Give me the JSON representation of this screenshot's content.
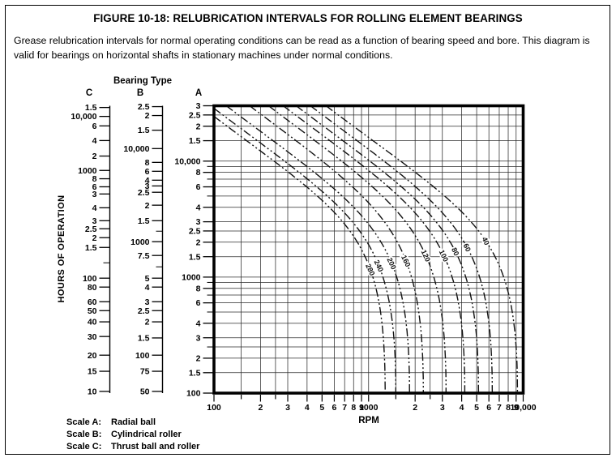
{
  "figure": {
    "title": "FIGURE 10-18: RELUBRICATION INTERVALS FOR ROLLING ELEMENT BEARINGS",
    "description": "Grease relubrication intervals for normal operating conditions can be read as a function of bearing speed and bore. This diagram is valid for bearings on horizontal shafts in stationary machines under normal conditions."
  },
  "bearing_type": {
    "header": "Bearing Type",
    "scale_c_letter": "C",
    "scale_b_letter": "B",
    "scale_a_letter": "A"
  },
  "nomogram": {
    "scale_c_ticks": [
      {
        "label": "1.5",
        "pos": 0.006
      },
      {
        "label": "10,000",
        "pos": 0.037
      },
      {
        "label": "6",
        "pos": 0.07
      },
      {
        "label": "4",
        "pos": 0.121
      },
      {
        "label": "2",
        "pos": 0.175
      },
      {
        "label": "1000",
        "pos": 0.225
      },
      {
        "label": "8",
        "pos": 0.254
      },
      {
        "label": "6",
        "pos": 0.282
      },
      {
        "label": "3",
        "pos": 0.307
      },
      {
        "label": "4",
        "pos": 0.355
      },
      {
        "label": "3",
        "pos": 0.4
      },
      {
        "label": "2.5",
        "pos": 0.428
      },
      {
        "label": "2",
        "pos": 0.459
      },
      {
        "label": "1.5",
        "pos": 0.493
      },
      {
        "label": "100",
        "pos": 0.6
      },
      {
        "label": "80",
        "pos": 0.631
      },
      {
        "label": "60",
        "pos": 0.682
      },
      {
        "label": "50",
        "pos": 0.713
      },
      {
        "label": "40",
        "pos": 0.752
      },
      {
        "label": "30",
        "pos": 0.803
      },
      {
        "label": "20",
        "pos": 0.868
      },
      {
        "label": "15",
        "pos": 0.924
      },
      {
        "label": "10",
        "pos": 0.994
      }
    ],
    "scale_b_ticks": [
      {
        "label": "2.5",
        "pos": 0.003
      },
      {
        "label": "2",
        "pos": 0.034
      },
      {
        "label": "1.5",
        "pos": 0.085
      },
      {
        "label": "10,000",
        "pos": 0.149
      },
      {
        "label": "8",
        "pos": 0.197
      },
      {
        "label": "6",
        "pos": 0.228
      },
      {
        "label": "4",
        "pos": 0.259
      },
      {
        "label": "3",
        "pos": 0.279
      },
      {
        "label": "2.5",
        "pos": 0.301
      },
      {
        "label": "2",
        "pos": 0.346
      },
      {
        "label": "1.5",
        "pos": 0.4
      },
      {
        "label": "1000",
        "pos": 0.473
      },
      {
        "label": "7.5",
        "pos": 0.521
      },
      {
        "label": "5",
        "pos": 0.6
      },
      {
        "label": "4",
        "pos": 0.631
      },
      {
        "label": "3",
        "pos": 0.682
      },
      {
        "label": "2.5",
        "pos": 0.713
      },
      {
        "label": "2",
        "pos": 0.752
      },
      {
        "label": "1.5",
        "pos": 0.808
      },
      {
        "label": "100",
        "pos": 0.868
      },
      {
        "label": "75",
        "pos": 0.924
      },
      {
        "label": "50",
        "pos": 0.994
      }
    ]
  },
  "chart_data": {
    "type": "line",
    "x_axis": {
      "label": "RPM",
      "scale": "log",
      "min": 100,
      "max": 10000,
      "ticks": [
        {
          "label": "100",
          "value": 100
        },
        {
          "label": "2",
          "value": 200
        },
        {
          "label": "3",
          "value": 300
        },
        {
          "label": "4",
          "value": 400
        },
        {
          "label": "5",
          "value": 500
        },
        {
          "label": "6",
          "value": 600
        },
        {
          "label": "7",
          "value": 700
        },
        {
          "label": "8",
          "value": 800
        },
        {
          "label": "9",
          "value": 900
        },
        {
          "label": "1000",
          "value": 1000
        },
        {
          "label": "2",
          "value": 2000
        },
        {
          "label": "3",
          "value": 3000
        },
        {
          "label": "4",
          "value": 4000
        },
        {
          "label": "5",
          "value": 5000
        },
        {
          "label": "6",
          "value": 6000
        },
        {
          "label": "7",
          "value": 7000
        },
        {
          "label": "8",
          "value": 8000
        },
        {
          "label": "9",
          "value": 9000
        },
        {
          "label": "10,000",
          "value": 10000
        }
      ],
      "grid_divisions": [
        1,
        1.5,
        2,
        2.5,
        3,
        4,
        5,
        6,
        7,
        8,
        9
      ]
    },
    "y_axis": {
      "label": "HOURS OF OPERATION",
      "scale": "log",
      "min": 100,
      "max": 30000,
      "ticks": [
        {
          "label": "3",
          "value": 30000
        },
        {
          "label": "2.5",
          "value": 25000
        },
        {
          "label": "2",
          "value": 20000
        },
        {
          "label": "1.5",
          "value": 15000
        },
        {
          "label": "10,000",
          "value": 10000
        },
        {
          "label": "8",
          "value": 8000
        },
        {
          "label": "6",
          "value": 6000
        },
        {
          "label": "4",
          "value": 4000
        },
        {
          "label": "3",
          "value": 3000
        },
        {
          "label": "2.5",
          "value": 2500
        },
        {
          "label": "2",
          "value": 2000
        },
        {
          "label": "1.5",
          "value": 1500
        },
        {
          "label": "1000",
          "value": 1000
        },
        {
          "label": "8",
          "value": 800
        },
        {
          "label": "6",
          "value": 600
        },
        {
          "label": "4",
          "value": 400
        },
        {
          "label": "3",
          "value": 300
        },
        {
          "label": "2",
          "value": 200
        },
        {
          "label": "1.5",
          "value": 150
        },
        {
          "label": "100",
          "value": 100
        }
      ],
      "minor_tick_values": [
        9000,
        7000,
        5000,
        900,
        700,
        500,
        250
      ],
      "grid_divisions": [
        1,
        1.5,
        2,
        2.5,
        3,
        4,
        5,
        6,
        7,
        8,
        9
      ]
    },
    "curves": [
      {
        "bore_label": "280",
        "entry": "left",
        "entry_value": 24300,
        "bottom_rpm": 1280,
        "label_at_hours": 1160
      },
      {
        "bore_label": "240",
        "entry": "left",
        "entry_value": 28500,
        "bottom_rpm": 1500,
        "label_at_hours": 1250
      },
      {
        "bore_label": "200",
        "entry": "top",
        "entry_value": 120,
        "bottom_rpm": 1840,
        "label_at_hours": 1310
      },
      {
        "bore_label": "160",
        "entry": "top",
        "entry_value": 170,
        "bottom_rpm": 2260,
        "label_at_hours": 1380
      },
      {
        "bore_label": "120",
        "entry": "top",
        "entry_value": 225,
        "bottom_rpm": 3170,
        "label_at_hours": 1530
      },
      {
        "bore_label": "100",
        "entry": "top",
        "entry_value": 280,
        "bottom_rpm": 4190,
        "label_at_hours": 1530
      },
      {
        "bore_label": "80",
        "entry": "top",
        "entry_value": 340,
        "bottom_rpm": 5140,
        "label_at_hours": 1660
      },
      {
        "bore_label": "60",
        "entry": "top",
        "entry_value": 420,
        "bottom_rpm": 6310,
        "label_at_hours": 1800
      },
      {
        "bore_label": "40",
        "entry": "top",
        "entry_value": 530,
        "bottom_rpm": 9180,
        "label_at_hours": 2050
      }
    ],
    "line_style": "dash-dot-dot",
    "ink_color": "#111111"
  },
  "legend": {
    "rows": [
      {
        "key": "Scale A:",
        "value": "Radial ball"
      },
      {
        "key": "Scale B:",
        "value": "Cylindrical roller"
      },
      {
        "key": "Scale C:",
        "value": "Thrust ball and roller"
      }
    ]
  }
}
